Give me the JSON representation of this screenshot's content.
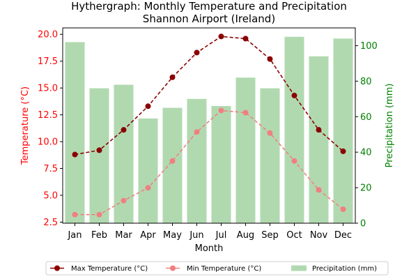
{
  "chart_data": {
    "type": "bar+line",
    "title": "Hythergraph: Monthly Temperature and Precipitation",
    "subtitle": "Shannon Airport (Ireland)",
    "xlabel": "Month",
    "ylabel_left": "Temperature (°C)",
    "ylabel_right": "Precipitation (mm)",
    "categories": [
      "Jan",
      "Feb",
      "Mar",
      "Apr",
      "May",
      "Jun",
      "Jul",
      "Aug",
      "Sep",
      "Oct",
      "Nov",
      "Dec"
    ],
    "ylim_left": [
      2.4,
      20.6
    ],
    "ylim_right": [
      0,
      110
    ],
    "yticks_left": [
      "2.5",
      "5.0",
      "7.5",
      "10.0",
      "12.5",
      "15.0",
      "17.5",
      "20.0"
    ],
    "yticks_right": [
      "0",
      "20",
      "40",
      "60",
      "80",
      "100"
    ],
    "series": [
      {
        "name": "Max Temperature (°C)",
        "kind": "line",
        "axis": "left",
        "color": "#8b0000",
        "style": "dashed",
        "values": [
          8.8,
          9.2,
          11.1,
          13.3,
          16.0,
          18.3,
          19.8,
          19.6,
          17.7,
          14.3,
          11.1,
          9.1
        ]
      },
      {
        "name": "Min Temperature (°C)",
        "kind": "line",
        "axis": "left",
        "color": "#f08080",
        "style": "dashed",
        "values": [
          3.2,
          3.2,
          4.5,
          5.7,
          8.2,
          10.9,
          12.9,
          12.7,
          10.8,
          8.2,
          5.5,
          3.7
        ]
      },
      {
        "name": "Precipitation (mm)",
        "kind": "bar",
        "axis": "right",
        "color": "#90c98f",
        "values": [
          102,
          76,
          78,
          59,
          65,
          70,
          66,
          82,
          76,
          105,
          94,
          104
        ]
      }
    ],
    "legend_position": "bottom",
    "grid": false,
    "colors": {
      "left_axis": "#ff0000",
      "right_axis": "#008000"
    }
  }
}
